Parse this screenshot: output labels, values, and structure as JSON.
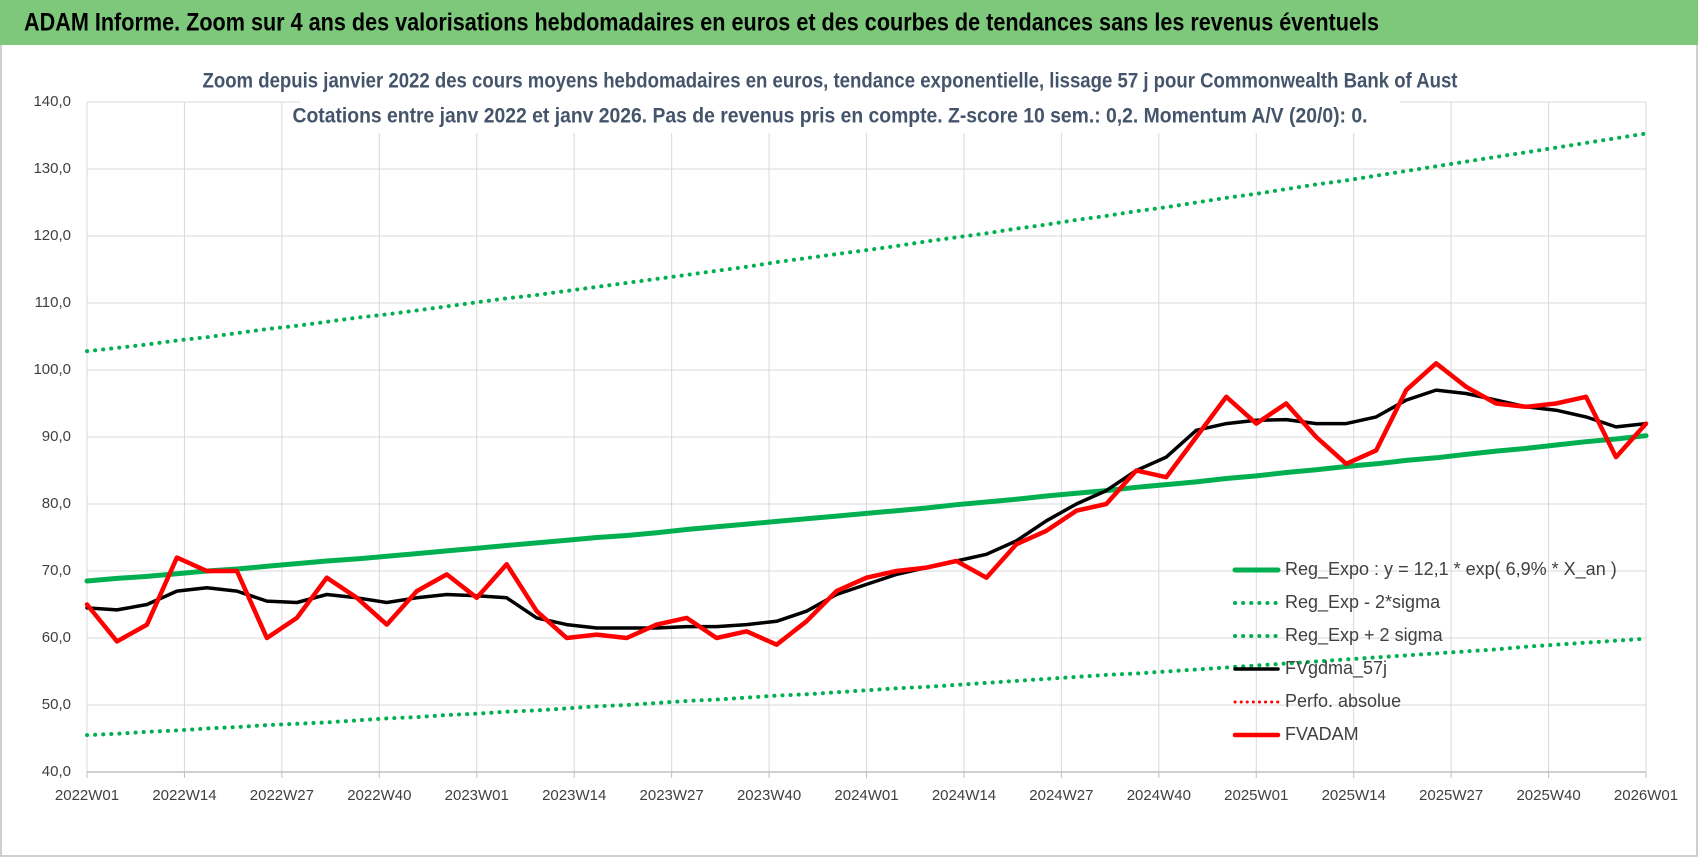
{
  "header": {
    "title": "ADAM Informe. Zoom sur 4 ans des valorisations hebdomadaires en euros et des courbes de tendances sans les revenus éventuels"
  },
  "chart_data": {
    "type": "line",
    "title": "Zoom depuis janvier 2022 des cours moyens hebdomadaires en euros, tendance exponentielle, lissage 57 j pour Commonwealth Bank of Aust",
    "subtitle": "Cotations entre janv 2022 et janv 2026. Pas de revenus pris en compte. Z-score 10 sem.: 0,2. Momentum A/V (20/0): 0.",
    "x": [
      0,
      4,
      8,
      12,
      16,
      20,
      24,
      28,
      32,
      36,
      40,
      44,
      48,
      52,
      56,
      60,
      64,
      68,
      72,
      76,
      80,
      84,
      88,
      92,
      96,
      100,
      104,
      108,
      112,
      116,
      120,
      124,
      128,
      132,
      136,
      140,
      144,
      148,
      152,
      156,
      160,
      164,
      168,
      172,
      176,
      180,
      184,
      188,
      192,
      196,
      200,
      204,
      208
    ],
    "xlim": [
      0,
      208
    ],
    "xticks": [
      {
        "value": 0,
        "label": "2022W01"
      },
      {
        "value": 13,
        "label": "2022W14"
      },
      {
        "value": 26,
        "label": "2022W27"
      },
      {
        "value": 39,
        "label": "2022W40"
      },
      {
        "value": 52,
        "label": "2023W01"
      },
      {
        "value": 65,
        "label": "2023W14"
      },
      {
        "value": 78,
        "label": "2023W27"
      },
      {
        "value": 91,
        "label": "2023W40"
      },
      {
        "value": 104,
        "label": "2024W01"
      },
      {
        "value": 117,
        "label": "2024W14"
      },
      {
        "value": 130,
        "label": "2024W27"
      },
      {
        "value": 143,
        "label": "2024W40"
      },
      {
        "value": 156,
        "label": "2025W01"
      },
      {
        "value": 169,
        "label": "2025W14"
      },
      {
        "value": 182,
        "label": "2025W27"
      },
      {
        "value": 195,
        "label": "2025W40"
      },
      {
        "value": 208,
        "label": "2026W01"
      }
    ],
    "ylim": [
      40,
      140
    ],
    "yticks": [
      {
        "value": 40,
        "label": "40,0"
      },
      {
        "value": 50,
        "label": "50,0"
      },
      {
        "value": 60,
        "label": "60,0"
      },
      {
        "value": 70,
        "label": "70,0"
      },
      {
        "value": 80,
        "label": "80,0"
      },
      {
        "value": 90,
        "label": "90,0"
      },
      {
        "value": 100,
        "label": "100,0"
      },
      {
        "value": 110,
        "label": "110,0"
      },
      {
        "value": 120,
        "label": "120,0"
      },
      {
        "value": 130,
        "label": "130,0"
      },
      {
        "value": 140,
        "label": "140,0"
      }
    ],
    "grid": true,
    "legend": "right",
    "series": [
      {
        "name": "Reg_Expo : y = 12,1 * exp( 6,9% *  X_an )",
        "color": "#00b050",
        "style": "solid",
        "width": 5,
        "values": [
          68.5,
          68.9,
          69.2,
          69.6,
          70.0,
          70.3,
          70.7,
          71.1,
          71.5,
          71.8,
          72.2,
          72.6,
          73.0,
          73.4,
          73.8,
          74.2,
          74.6,
          75.0,
          75.3,
          75.7,
          76.2,
          76.6,
          77.0,
          77.4,
          77.8,
          78.2,
          78.6,
          79.0,
          79.4,
          79.9,
          80.3,
          80.7,
          81.2,
          81.6,
          82.0,
          82.5,
          82.9,
          83.3,
          83.8,
          84.2,
          84.7,
          85.1,
          85.6,
          86.0,
          86.5,
          86.9,
          87.4,
          87.9,
          88.3,
          88.8,
          89.3,
          89.7,
          90.2
        ]
      },
      {
        "name": "Reg_Exp - 2*sigma",
        "color": "#00b050",
        "style": "dotted",
        "width": 4,
        "values": [
          45.5,
          45.7,
          46.0,
          46.2,
          46.5,
          46.7,
          47.0,
          47.2,
          47.4,
          47.7,
          48.0,
          48.2,
          48.5,
          48.7,
          49.0,
          49.2,
          49.5,
          49.8,
          50.0,
          50.3,
          50.6,
          50.8,
          51.1,
          51.4,
          51.6,
          51.9,
          52.2,
          52.5,
          52.7,
          53.0,
          53.3,
          53.6,
          53.9,
          54.2,
          54.5,
          54.7,
          55.0,
          55.3,
          55.6,
          55.9,
          56.2,
          56.5,
          56.8,
          57.1,
          57.4,
          57.7,
          58.0,
          58.3,
          58.7,
          59.0,
          59.3,
          59.6,
          59.9
        ]
      },
      {
        "name": "Reg_Exp + 2 sigma",
        "color": "#00b050",
        "style": "dotted",
        "width": 4,
        "values": [
          102.8,
          103.3,
          103.8,
          104.4,
          104.9,
          105.5,
          106.1,
          106.6,
          107.2,
          107.8,
          108.3,
          108.9,
          109.5,
          110.1,
          110.7,
          111.2,
          111.8,
          112.4,
          113.0,
          113.6,
          114.2,
          114.8,
          115.4,
          116.1,
          116.7,
          117.3,
          117.9,
          118.5,
          119.2,
          119.8,
          120.4,
          121.1,
          121.7,
          122.4,
          123.0,
          123.7,
          124.3,
          125.0,
          125.7,
          126.3,
          127.0,
          127.7,
          128.3,
          129.0,
          129.7,
          130.4,
          131.1,
          131.8,
          132.5,
          133.2,
          133.9,
          134.6,
          135.3
        ]
      },
      {
        "name": "FVgdma_57j",
        "color": "#000000",
        "style": "solid",
        "width": 3.5,
        "values": [
          64.5,
          64.2,
          65,
          67,
          67.5,
          67,
          65.5,
          65.3,
          66.5,
          66,
          65.3,
          66,
          66.5,
          66.3,
          66,
          63,
          62,
          61.5,
          61.5,
          61.5,
          61.7,
          61.7,
          62,
          62.5,
          64,
          66.5,
          68,
          69.5,
          70.5,
          71.5,
          72.5,
          74.5,
          77.5,
          80,
          82,
          85,
          87,
          91,
          92,
          92.5,
          92.6,
          92,
          92,
          93,
          95.5,
          97,
          96.5,
          95.5,
          94.5,
          94,
          93,
          91.5,
          92
        ]
      },
      {
        "name": "Perfo. absolue",
        "color": "#ff0000",
        "style": "dotted",
        "width": 3
      },
      {
        "name": "FVADAM",
        "color": "#ff0000",
        "style": "solid",
        "width": 4.5,
        "values": [
          65,
          59.5,
          62,
          72,
          70,
          70,
          60,
          63,
          69,
          66,
          62,
          67,
          69.5,
          66,
          71,
          64,
          60,
          60.5,
          60,
          62,
          63,
          60,
          61,
          59,
          62.5,
          67,
          69,
          70,
          70.5,
          71.5,
          69,
          74,
          76,
          79,
          80,
          85,
          84,
          90,
          96,
          92,
          95,
          90,
          86,
          88,
          97,
          101,
          97.5,
          95,
          94.5,
          95,
          96,
          87,
          92
        ]
      }
    ]
  }
}
